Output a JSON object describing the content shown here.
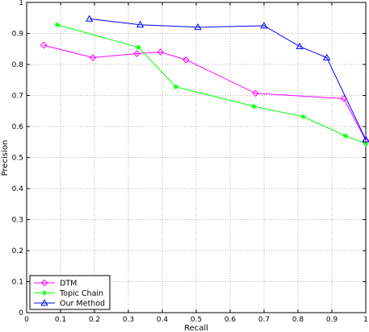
{
  "chart_data": {
    "type": "line",
    "xlabel": "Recall",
    "ylabel": "Precision",
    "xlim": [
      0,
      1
    ],
    "ylim": [
      0,
      1
    ],
    "xticks": [
      "0",
      "0.1",
      "0.2",
      "0.3",
      "0.4",
      "0.5",
      "0.6",
      "0.7",
      "0.8",
      "0.9",
      "1"
    ],
    "yticks": [
      "0",
      "0.1",
      "0.2",
      "0.3",
      "0.4",
      "0.5",
      "0.6",
      "0.7",
      "0.8",
      "0.9",
      "1"
    ],
    "grid": "dotted",
    "legend_position": "bottom-left",
    "series": [
      {
        "name": "DTM",
        "color": "#ff00ff",
        "marker": "diamond",
        "x": [
          0.05,
          0.195,
          0.325,
          0.395,
          0.47,
          0.675,
          0.935,
          1.0
        ],
        "y": [
          0.862,
          0.822,
          0.835,
          0.84,
          0.815,
          0.707,
          0.69,
          0.555
        ]
      },
      {
        "name": "Topic Chain",
        "color": "#00ff00",
        "marker": "star",
        "x": [
          0.09,
          0.33,
          0.44,
          0.67,
          0.815,
          0.94,
          1.0
        ],
        "y": [
          0.928,
          0.855,
          0.728,
          0.665,
          0.632,
          0.57,
          0.545
        ]
      },
      {
        "name": "Our Method",
        "color": "#0000ff",
        "marker": "triangle",
        "x": [
          0.185,
          0.335,
          0.505,
          0.7,
          0.805,
          0.885,
          1.0
        ],
        "y": [
          0.947,
          0.928,
          0.92,
          0.925,
          0.858,
          0.822,
          0.558
        ]
      }
    ]
  }
}
